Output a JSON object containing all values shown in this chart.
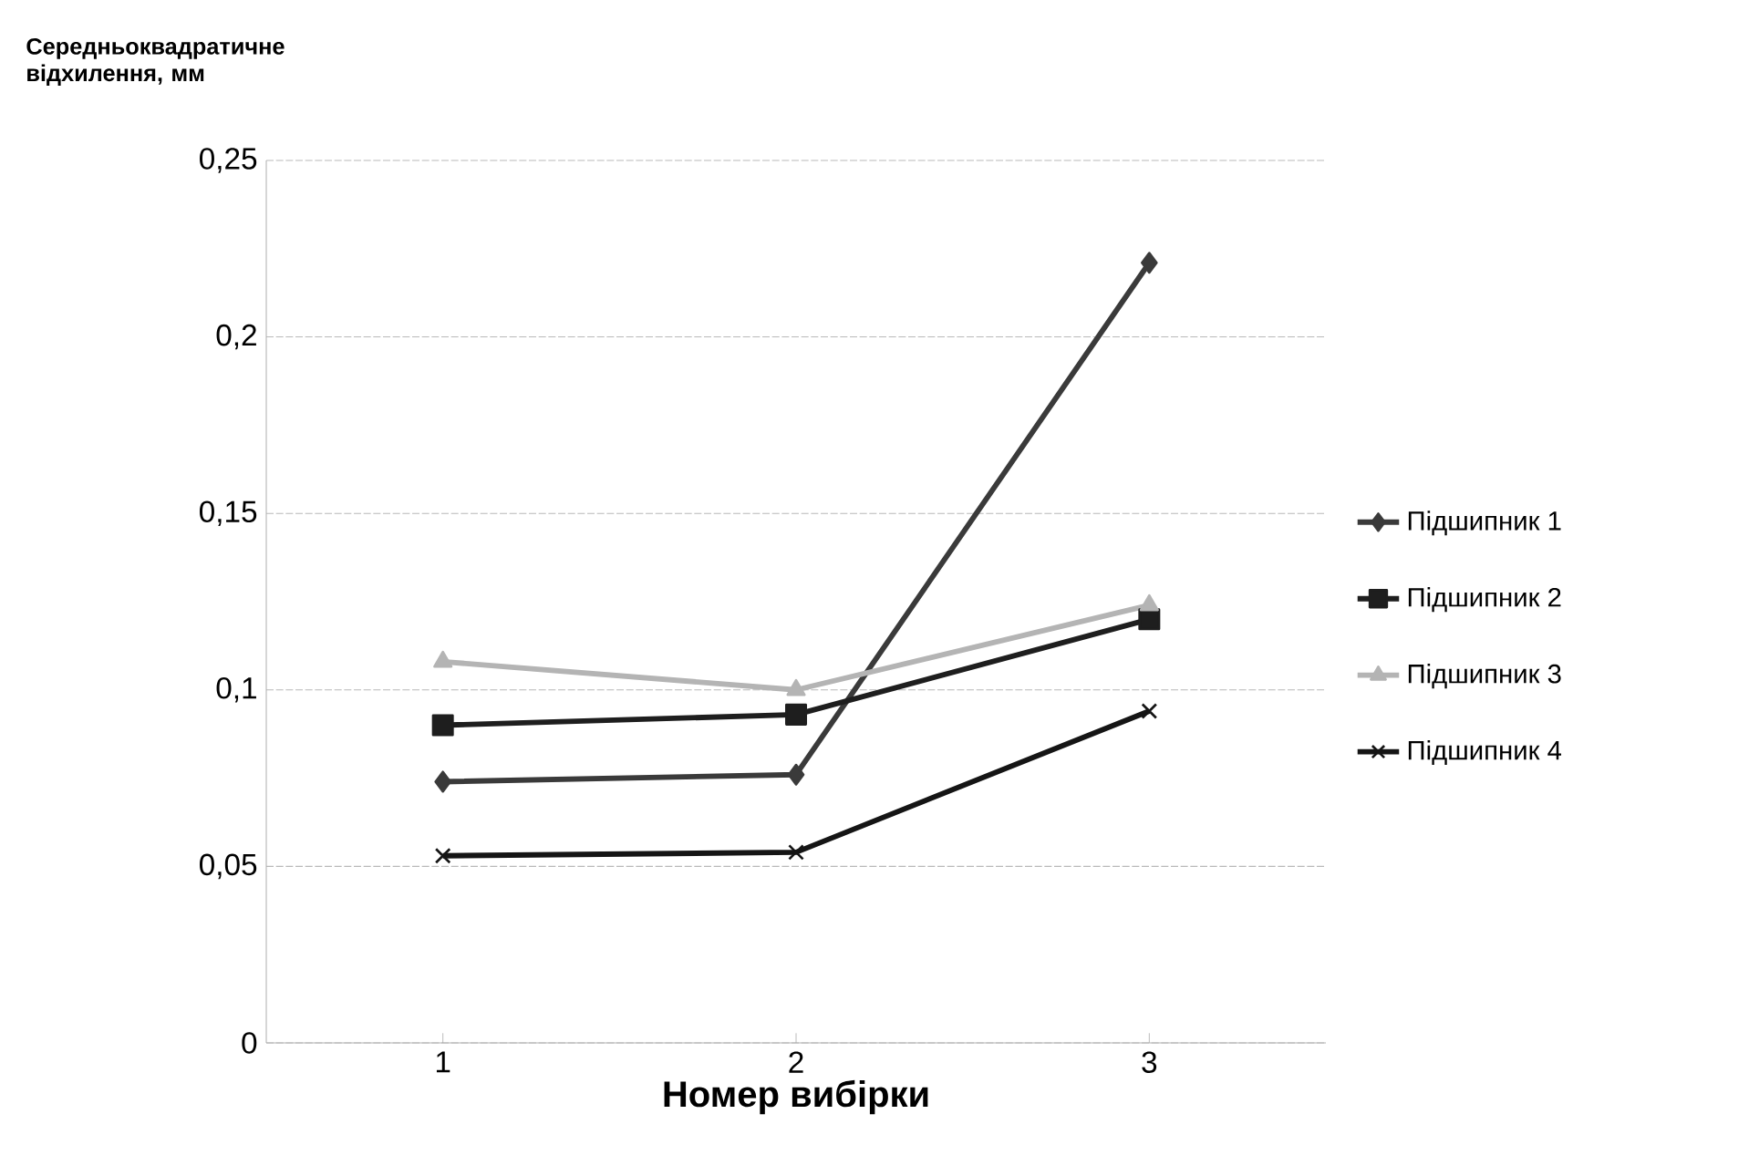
{
  "chart_data": {
    "type": "line",
    "ylabel": "Середньоквадратичне відхилення, мм",
    "xlabel": "Номер вибірки",
    "categories": [
      "1",
      "2",
      "3"
    ],
    "ylim": [
      0,
      0.25
    ],
    "yticks": [
      {
        "value": 0,
        "label": "0"
      },
      {
        "value": 0.05,
        "label": "0,05"
      },
      {
        "value": 0.1,
        "label": "0,1"
      },
      {
        "value": 0.15,
        "label": "0,15"
      },
      {
        "value": 0.2,
        "label": "0,2"
      },
      {
        "value": 0.25,
        "label": "0,25"
      }
    ],
    "grid": "y",
    "legend": "right",
    "line_style": "solid",
    "series": [
      {
        "name": "Підшипник 1",
        "color": "#3a3a3a",
        "marker": "diamond",
        "values": [
          0.074,
          0.076,
          0.221
        ]
      },
      {
        "name": "Підшипник 2",
        "color": "#1e1e1e",
        "marker": "square",
        "values": [
          0.09,
          0.093,
          0.12
        ]
      },
      {
        "name": "Підшипник 3",
        "color": "#b4b4b4",
        "marker": "triangle",
        "values": [
          0.108,
          0.1,
          0.124
        ]
      },
      {
        "name": "Підшипник 4",
        "color": "#151515",
        "marker": "cross",
        "values": [
          0.053,
          0.054,
          0.094
        ]
      }
    ]
  }
}
